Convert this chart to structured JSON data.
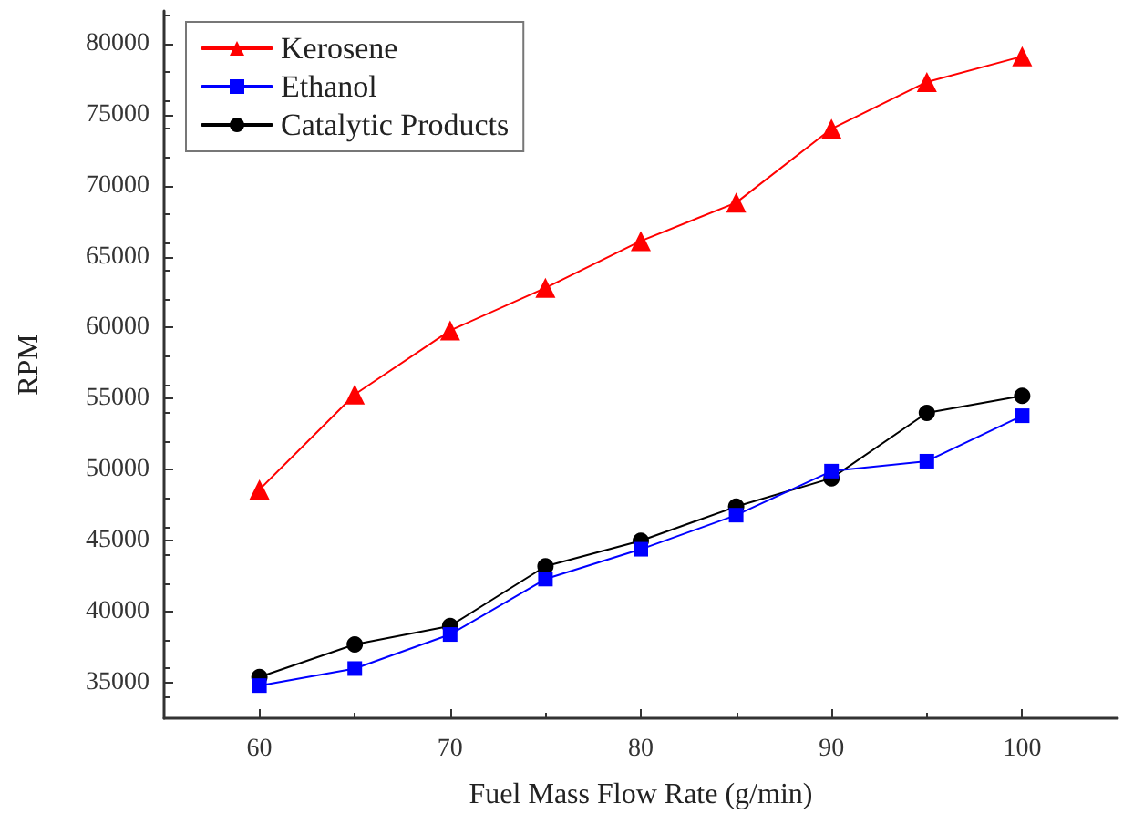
{
  "chart_data": {
    "type": "line",
    "xlabel": "Fuel Mass Flow Rate (g/min)",
    "ylabel": "RPM",
    "x": [
      60,
      65,
      70,
      75,
      80,
      85,
      90,
      95,
      100
    ],
    "series": [
      {
        "name": "Kerosene",
        "color": "#ff0000",
        "marker": "triangle",
        "values": [
          48600,
          55300,
          59800,
          62800,
          66100,
          68800,
          74000,
          77300,
          79100
        ]
      },
      {
        "name": "Ethanol",
        "color": "#0000ff",
        "marker": "square",
        "values": [
          34800,
          36000,
          38400,
          42300,
          44400,
          46800,
          49900,
          50600,
          53800
        ]
      },
      {
        "name": "Catalytic Products",
        "color": "#000000",
        "marker": "circle",
        "values": [
          35400,
          37700,
          39000,
          43200,
          45000,
          47400,
          49400,
          54000,
          55200
        ]
      }
    ],
    "xlim": [
      55,
      105
    ],
    "xticks": [
      60,
      70,
      80,
      90,
      100
    ],
    "ylim": [
      32500,
      82300
    ],
    "yticks": [
      35000,
      40000,
      45000,
      50000,
      55000,
      60000,
      65000,
      70000,
      75000,
      80000
    ],
    "grid": false,
    "legend": "top left",
    "line_style": "solid"
  }
}
